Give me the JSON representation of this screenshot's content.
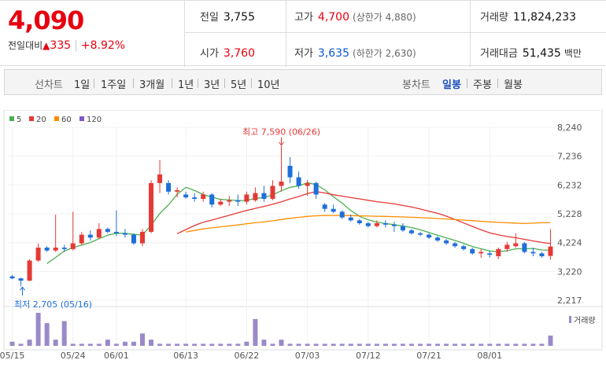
{
  "quote": {
    "price": "4,090",
    "change_label": "전일대비",
    "change_value": "335",
    "change_pct": "+8.92%",
    "prev_label": "전일",
    "prev_value": "3,755",
    "high_label": "고가",
    "high_value": "4,700",
    "upper_limit": "(상한가 4,880)",
    "volume_label": "거래량",
    "volume_value": "11,824,233",
    "open_label": "시가",
    "open_value": "3,760",
    "low_label": "저가",
    "low_value": "3,635",
    "lower_limit": "(하한가 2,630)",
    "amount_label": "거래대금",
    "amount_value": "51,435",
    "amount_unit": "백만"
  },
  "toolbar": {
    "line_label": "선차트",
    "line_periods": [
      "1일",
      "1주일",
      "3개월",
      "1년",
      "3년",
      "5년",
      "10년"
    ],
    "candle_label": "봉차트",
    "candle_periods": [
      "일봉",
      "주봉",
      "월봉"
    ],
    "active_candle": "일봉"
  },
  "chart_data": {
    "type": "candlestick",
    "legend": [
      {
        "name": "5",
        "color": "#4caf50"
      },
      {
        "name": "20",
        "color": "#e53935"
      },
      {
        "name": "60",
        "color": "#fb8c00"
      },
      {
        "name": "120",
        "color": "#7e57c2"
      }
    ],
    "y_ticks": [
      "8,240",
      "7,236",
      "6,232",
      "5,228",
      "4,224",
      "3,220",
      "2,217"
    ],
    "y_range": [
      2217,
      8240
    ],
    "x_ticks": [
      "05/15",
      "05/24",
      "06/01",
      "06/13",
      "06/22",
      "07/03",
      "07/12",
      "07/21",
      "08/01"
    ],
    "x_tick_index": [
      0,
      7,
      12,
      20,
      27,
      34,
      41,
      48,
      55
    ],
    "high_annotation": "최고 7,590 (06/26)",
    "low_annotation": "최저 2,705 (05/16)",
    "volume_label": "거래량",
    "up_color": "#e53935",
    "down_color": "#1e6fd9",
    "candles": [
      [
        3050,
        3100,
        2950,
        2980
      ],
      [
        2980,
        3000,
        2705,
        2900
      ],
      [
        2900,
        3650,
        2880,
        3600
      ],
      [
        3600,
        4200,
        3550,
        4050
      ],
      [
        4050,
        4100,
        3900,
        3950
      ],
      [
        3950,
        5200,
        3900,
        4050
      ],
      [
        4050,
        4150,
        3900,
        4000
      ],
      [
        4000,
        5300,
        3950,
        4200
      ],
      [
        4200,
        4600,
        4150,
        4500
      ],
      [
        4500,
        4650,
        4300,
        4400
      ],
      [
        4400,
        4900,
        4350,
        4700
      ],
      [
        4700,
        4750,
        4550,
        4600
      ],
      [
        4600,
        5350,
        4450,
        4550
      ],
      [
        4550,
        4700,
        4400,
        4500
      ],
      [
        4500,
        4550,
        4150,
        4200
      ],
      [
        4200,
        4700,
        4100,
        4600
      ],
      [
        4600,
        6400,
        4550,
        6300
      ],
      [
        6300,
        7100,
        5950,
        6600
      ],
      [
        6300,
        6400,
        5900,
        6000
      ],
      [
        6000,
        6150,
        5800,
        6050
      ],
      [
        5900,
        6000,
        5750,
        5800
      ],
      [
        5800,
        5950,
        5650,
        5750
      ],
      [
        5750,
        6000,
        5650,
        5900
      ],
      [
        5900,
        5950,
        5450,
        5550
      ],
      [
        5550,
        5750,
        5500,
        5650
      ],
      [
        5650,
        5850,
        5500,
        5700
      ],
      [
        5700,
        5900,
        5500,
        5650
      ],
      [
        5650,
        6000,
        5550,
        5900
      ],
      [
        5700,
        6150,
        5650,
        5950
      ],
      [
        5950,
        6200,
        5650,
        5750
      ],
      [
        5750,
        6400,
        5700,
        6200
      ],
      [
        6200,
        7590,
        6000,
        6350
      ],
      [
        6900,
        7200,
        6300,
        6500
      ],
      [
        6500,
        6700,
        6100,
        6200
      ],
      [
        6200,
        6400,
        5850,
        6300
      ],
      [
        6300,
        6350,
        5750,
        5900
      ],
      [
        5550,
        5600,
        5300,
        5400
      ],
      [
        5400,
        5550,
        5250,
        5300
      ],
      [
        5300,
        5350,
        5050,
        5100
      ],
      [
        5100,
        5200,
        4950,
        5000
      ],
      [
        5000,
        5050,
        4850,
        4900
      ],
      [
        4900,
        4950,
        4750,
        4800
      ],
      [
        4800,
        5000,
        4750,
        4900
      ],
      [
        4900,
        5000,
        4750,
        4850
      ],
      [
        4850,
        4950,
        4600,
        4800
      ],
      [
        4800,
        4900,
        4600,
        4650
      ],
      [
        4650,
        4700,
        4500,
        4550
      ],
      [
        4550,
        4600,
        4450,
        4500
      ],
      [
        4500,
        4550,
        4350,
        4400
      ],
      [
        4400,
        4450,
        4250,
        4300
      ],
      [
        4300,
        4350,
        4150,
        4200
      ],
      [
        4200,
        4250,
        4050,
        4100
      ],
      [
        4100,
        4150,
        3950,
        4000
      ],
      [
        4000,
        4050,
        3800,
        3850
      ],
      [
        3850,
        4000,
        3700,
        3900
      ],
      [
        3850,
        3950,
        3700,
        3800
      ],
      [
        3750,
        4050,
        3650,
        4000
      ],
      [
        4000,
        4250,
        3900,
        4150
      ],
      [
        4100,
        4550,
        4050,
        4200
      ],
      [
        4200,
        4250,
        3850,
        3900
      ],
      [
        3900,
        4050,
        3750,
        3850
      ],
      [
        3850,
        3900,
        3700,
        3750
      ],
      [
        3760,
        4700,
        3635,
        4090
      ]
    ],
    "volume": [
      2,
      1,
      3,
      16,
      11,
      3,
      12,
      1,
      1,
      1,
      1,
      3,
      1,
      2,
      2,
      6,
      3,
      1,
      1,
      1,
      1,
      1,
      1,
      1,
      1,
      1,
      1,
      2,
      13,
      3,
      1,
      3,
      1,
      1,
      1,
      1,
      1,
      1,
      1,
      1,
      1,
      1,
      1,
      1,
      1,
      1,
      1,
      1,
      1,
      1,
      1,
      1,
      1,
      1,
      1,
      1,
      1,
      1,
      1,
      1,
      1,
      1,
      5
    ]
  }
}
